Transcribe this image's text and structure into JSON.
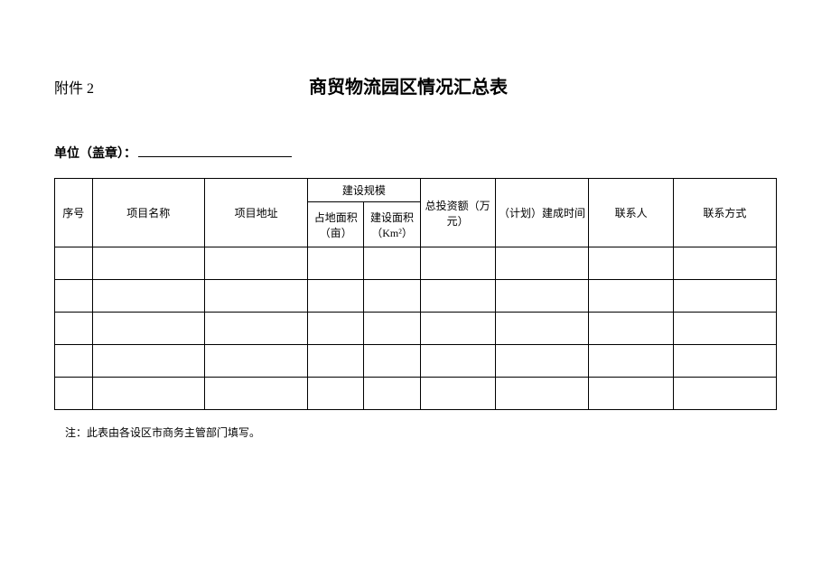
{
  "header": {
    "attachment_label": "附件 2",
    "title": "商贸物流园区情况汇总表"
  },
  "unit": {
    "label": "单位（盖章）：",
    "value": ""
  },
  "table": {
    "columns": {
      "seq": "序号",
      "project_name": "项目名称",
      "project_addr": "项目地址",
      "scale_group": "建设规模",
      "land_area": "占地面积（亩）",
      "build_area": "建设面积（Km²）",
      "total_invest": "总投资额（万元）",
      "plan_time": "（计划）建成时间",
      "contact": "联系人",
      "phone": "联系方式"
    },
    "rows": [
      {
        "seq": "",
        "project_name": "",
        "project_addr": "",
        "land_area": "",
        "build_area": "",
        "total_invest": "",
        "plan_time": "",
        "contact": "",
        "phone": ""
      },
      {
        "seq": "",
        "project_name": "",
        "project_addr": "",
        "land_area": "",
        "build_area": "",
        "total_invest": "",
        "plan_time": "",
        "contact": "",
        "phone": ""
      },
      {
        "seq": "",
        "project_name": "",
        "project_addr": "",
        "land_area": "",
        "build_area": "",
        "total_invest": "",
        "plan_time": "",
        "contact": "",
        "phone": ""
      },
      {
        "seq": "",
        "project_name": "",
        "project_addr": "",
        "land_area": "",
        "build_area": "",
        "total_invest": "",
        "plan_time": "",
        "contact": "",
        "phone": ""
      },
      {
        "seq": "",
        "project_name": "",
        "project_addr": "",
        "land_area": "",
        "build_area": "",
        "total_invest": "",
        "plan_time": "",
        "contact": "",
        "phone": ""
      }
    ]
  },
  "footnote": "注：此表由各设区市商务主管部门填写。"
}
